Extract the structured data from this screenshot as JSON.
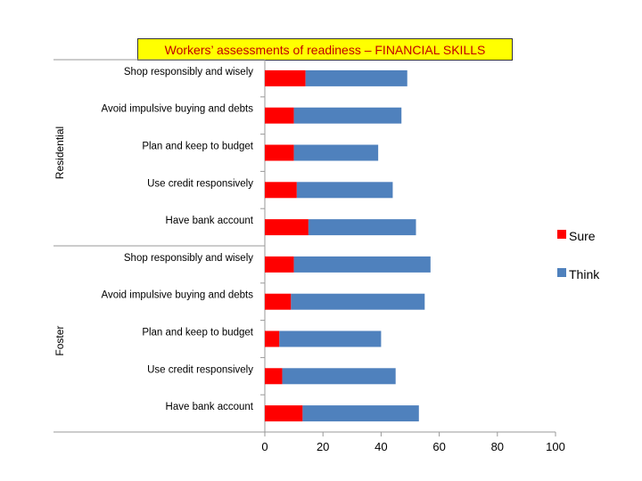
{
  "chart_data": {
    "type": "bar",
    "orientation": "horizontal",
    "stacked": true,
    "title": "Workers’ assessments of readiness – FINANCIAL  SKILLS",
    "groups": [
      {
        "name": "Residential",
        "categories": [
          "Shop responsibly and wisely",
          "Avoid impulsive buying and debts",
          "Plan and keep to budget",
          "Use credit responsively",
          "Have bank account"
        ],
        "series": [
          {
            "name": "Sure",
            "values": [
              14,
              10,
              10,
              11,
              15
            ]
          },
          {
            "name": "Think",
            "values": [
              35,
              37,
              29,
              33,
              37
            ]
          }
        ]
      },
      {
        "name": "Foster",
        "categories": [
          "Shop responsibly and wisely",
          "Avoid impulsive buying and debts",
          "Plan and keep to budget",
          "Use credit responsively",
          "Have bank account"
        ],
        "series": [
          {
            "name": "Sure",
            "values": [
              10,
              9,
              5,
              6,
              13
            ]
          },
          {
            "name": "Think",
            "values": [
              47,
              46,
              35,
              39,
              40
            ]
          }
        ]
      }
    ],
    "xlim": [
      0,
      100
    ],
    "xticks": [
      0,
      20,
      40,
      60,
      80,
      100
    ],
    "grid": false,
    "legend": {
      "position": "right",
      "entries": [
        "Sure",
        "Think"
      ]
    },
    "colors": {
      "Sure": "#ff0000",
      "Think": "#4f81bd"
    }
  }
}
